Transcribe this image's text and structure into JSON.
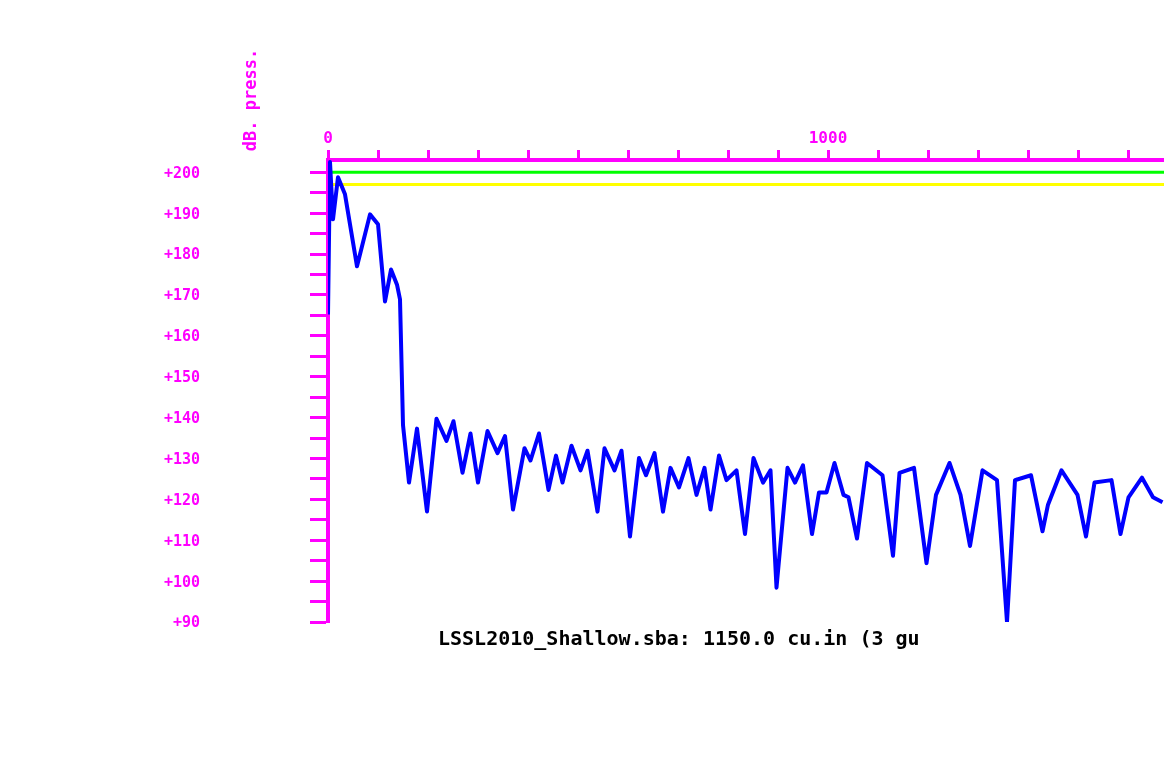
{
  "chart_data": {
    "type": "line",
    "ylabel": "dB. press.",
    "annotations": [
      "LSSL2010_Shallow.sba: 1150.0 cu.in (3 gu"
    ],
    "xlim": [
      0,
      1672
    ],
    "ylim": [
      90,
      203
    ],
    "xticks": [
      0,
      {
        "value": 100,
        "label": null
      },
      {
        "value": 200,
        "label": null
      },
      {
        "value": 300,
        "label": null
      },
      {
        "value": 400,
        "label": null
      },
      {
        "value": 500,
        "label": null
      },
      {
        "value": 600,
        "label": null
      },
      {
        "value": 700,
        "label": null
      },
      {
        "value": 800,
        "label": null
      },
      {
        "value": 900,
        "label": null
      },
      1000,
      {
        "value": 1100,
        "label": null
      },
      {
        "value": 1200,
        "label": null
      },
      {
        "value": 1300,
        "label": null
      },
      {
        "value": 1400,
        "label": null
      },
      {
        "value": 1500,
        "label": null
      },
      {
        "value": 1600,
        "label": null
      }
    ],
    "yticks": [
      {
        "value": 90,
        "label": "+90"
      },
      {
        "value": 95,
        "label": null
      },
      {
        "value": 100,
        "label": "+100"
      },
      {
        "value": 105,
        "label": null
      },
      {
        "value": 110,
        "label": "+110"
      },
      {
        "value": 115,
        "label": null
      },
      {
        "value": 120,
        "label": "+120"
      },
      {
        "value": 125,
        "label": null
      },
      {
        "value": 130,
        "label": "+130"
      },
      {
        "value": 135,
        "label": null
      },
      {
        "value": 140,
        "label": "+140"
      },
      {
        "value": 145,
        "label": null
      },
      {
        "value": 150,
        "label": "+150"
      },
      {
        "value": 155,
        "label": null
      },
      {
        "value": 160,
        "label": "+160"
      },
      {
        "value": 165,
        "label": null
      },
      {
        "value": 170,
        "label": "+170"
      },
      {
        "value": 175,
        "label": null
      },
      {
        "value": 180,
        "label": "+180"
      },
      {
        "value": 185,
        "label": null
      },
      {
        "value": 190,
        "label": "+190"
      },
      {
        "value": 195,
        "label": null
      },
      {
        "value": 200,
        "label": "+200"
      }
    ],
    "grid": false,
    "marker": "none",
    "ref_lines": [
      {
        "axis": "y",
        "value": 200,
        "color": "#00ff00"
      },
      {
        "axis": "y",
        "value": 197,
        "color": "#ffff00"
      }
    ],
    "series": [
      {
        "color": "#0000ff",
        "x": [
          0,
          4,
          10,
          20,
          34,
          58,
          84,
          100,
          114,
          126,
          138,
          144,
          150,
          162,
          178,
          198,
          217,
          237,
          251,
          269,
          285,
          300,
          319,
          339,
          354,
          370,
          393,
          405,
          422,
          441,
          456,
          469,
          487,
          505,
          519,
          539,
          553,
          573,
          587,
          604,
          622,
          636,
          653,
          670,
          685,
          702,
          721,
          737,
          753,
          765,
          782,
          797,
          817,
          834,
          851,
          870,
          885,
          897,
          919,
          934,
          950,
          968,
          982,
          997,
          1013,
          1031,
          1041,
          1058,
          1078,
          1109,
          1130,
          1143,
          1172,
          1197,
          1216,
          1243,
          1265,
          1284,
          1309,
          1338,
          1358,
          1374,
          1406,
          1429,
          1440,
          1467,
          1499,
          1516,
          1533,
          1567,
          1585,
          1601,
          1628,
          1650,
          1669
        ],
        "values": [
          165.2,
          202.5,
          188.5,
          198.8,
          194.6,
          177,
          189.7,
          187.3,
          168.4,
          176.2,
          172.5,
          168.9,
          138.2,
          124.1,
          137.3,
          117,
          139.7,
          134.3,
          139.1,
          126.5,
          136.1,
          124.1,
          136.7,
          131.3,
          135.5,
          117.5,
          132.5,
          129.5,
          136.1,
          122.3,
          130.7,
          124.1,
          133.1,
          127.1,
          131.9,
          117,
          132.5,
          127.1,
          131.9,
          110.9,
          130.1,
          125.9,
          131.3,
          117,
          127.7,
          122.9,
          130.1,
          121.1,
          127.7,
          117.5,
          130.7,
          124.7,
          127.1,
          111.5,
          130.1,
          124.1,
          127.1,
          98.4,
          127.7,
          124.1,
          128.3,
          111.5,
          121.7,
          121.7,
          128.9,
          121.1,
          120.5,
          110.4,
          128.9,
          125.9,
          106.2,
          126.5,
          127.7,
          104.4,
          121.1,
          128.9,
          121.1,
          108.6,
          127.1,
          124.7,
          90,
          124.7,
          125.9,
          112.2,
          118.7,
          127.1,
          121.1,
          110.9,
          124.1,
          124.7,
          111.5,
          120.5,
          125.3,
          120.5,
          119.3
        ]
      }
    ]
  }
}
